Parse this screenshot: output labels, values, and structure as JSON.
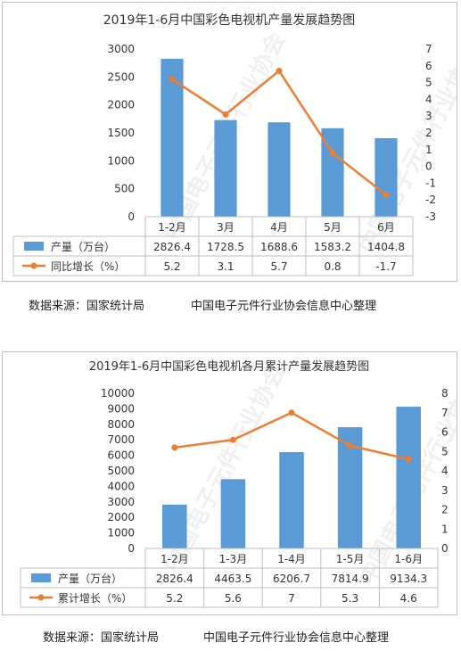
{
  "colors": {
    "bar": "#5b9bd5",
    "line": "#ed7d31",
    "axis": "#595959",
    "grid": "#d9d9d9"
  },
  "chart_data": [
    {
      "type": "bar",
      "title": "2019年1-6月中国彩色电视机产量发展趋势图",
      "categories": [
        "1-2月",
        "3月",
        "4月",
        "5月",
        "6月"
      ],
      "series": [
        {
          "name": "产量（万台）",
          "type": "bar",
          "axis": "left",
          "values": [
            2826.4,
            1728.5,
            1688.6,
            1583.2,
            1404.8
          ]
        },
        {
          "name": "同比增长（%）",
          "type": "line",
          "axis": "right",
          "values": [
            5.2,
            3.1,
            5.7,
            0.8,
            -1.7
          ]
        }
      ],
      "y_left": {
        "min": 0,
        "max": 3000,
        "ticks": [
          0,
          500,
          1000,
          1500,
          2000,
          2500,
          3000
        ]
      },
      "y_right": {
        "min": -3,
        "max": 7,
        "ticks": [
          -3,
          -2,
          -1,
          0,
          1,
          2,
          3,
          4,
          5,
          6,
          7
        ]
      },
      "grid": false,
      "legend": "data-table"
    },
    {
      "type": "bar",
      "title": "2019年1-6月中国彩色电视机各月累计产量发展趋势图",
      "categories": [
        "1-2月",
        "1-3月",
        "1-4月",
        "1-5月",
        "1-6月"
      ],
      "series": [
        {
          "name": "产量（万台）",
          "type": "bar",
          "axis": "left",
          "values": [
            2826.4,
            4463.5,
            6206.7,
            7814.9,
            9134.3
          ]
        },
        {
          "name": "累计增长（%）",
          "type": "line",
          "axis": "right",
          "values": [
            5.2,
            5.6,
            7,
            5.3,
            4.6
          ]
        }
      ],
      "y_left": {
        "min": 0,
        "max": 10000,
        "ticks": [
          0,
          1000,
          2000,
          3000,
          4000,
          5000,
          6000,
          7000,
          8000,
          9000,
          10000
        ]
      },
      "y_right": {
        "min": 0,
        "max": 8,
        "ticks": [
          0,
          1,
          2,
          3,
          4,
          5,
          6,
          7,
          8
        ]
      },
      "grid": false,
      "legend": "data-table"
    }
  ],
  "watermark": "中国电子元件行业协会",
  "sources": [
    {
      "left": "数据来源：国家统计局",
      "right": "中国电子元件行业协会信息中心整理"
    },
    {
      "left": "数据来源：国家统计局",
      "right": "中国电子元件行业协会信息中心整理"
    }
  ]
}
